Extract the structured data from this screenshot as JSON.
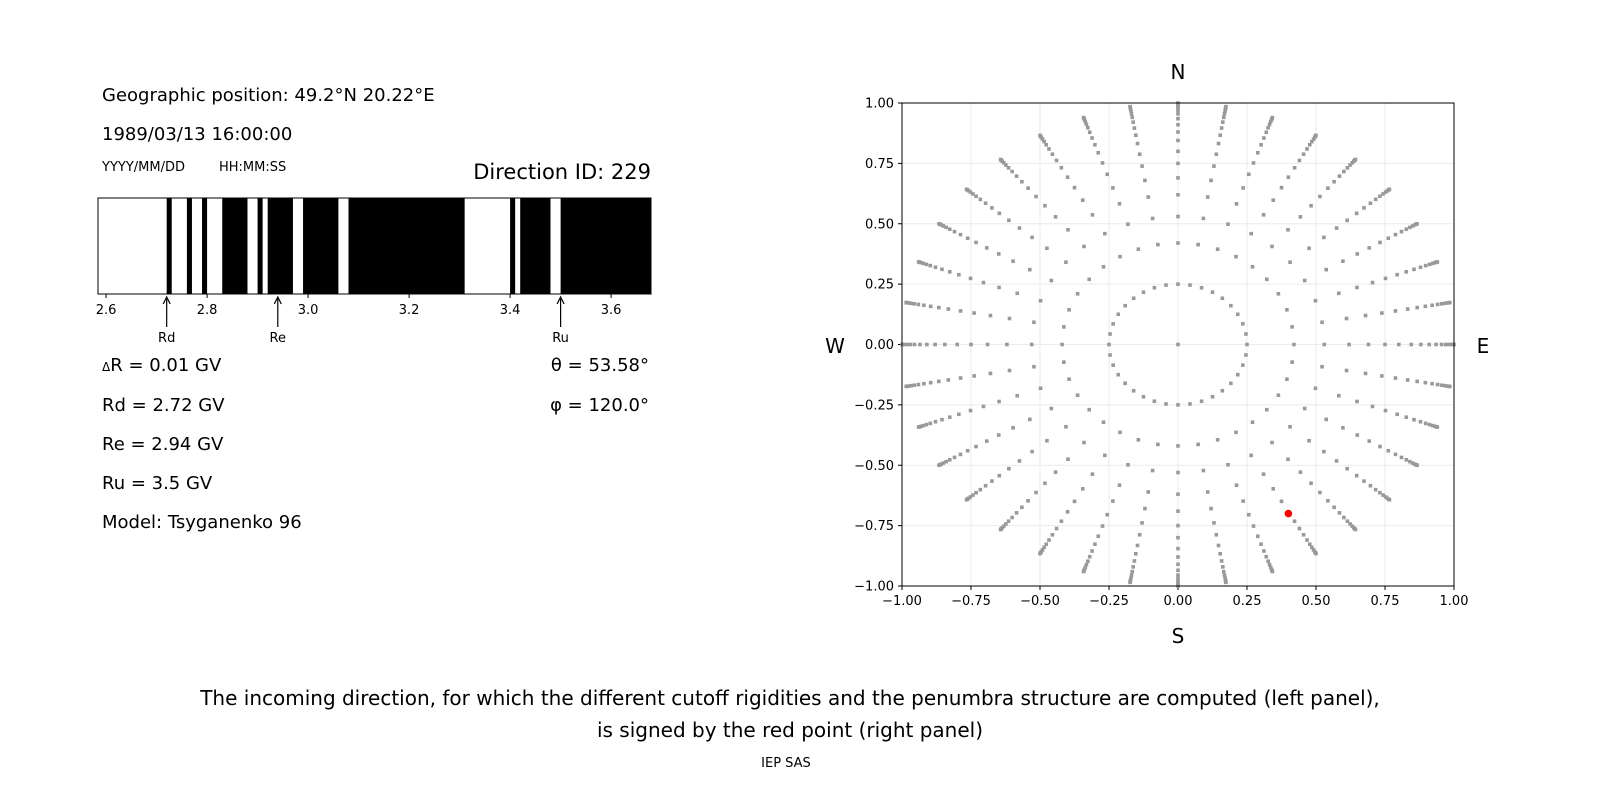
{
  "left_panel": {
    "geo_position": "Geographic position: 49.2°N 20.22°E",
    "datetime": "1989/03/13 16:00:00",
    "date_format": "YYYY/MM/DD",
    "time_format": "HH:MM:SS",
    "direction_id": "Direction ID: 229",
    "delta_r": "R = 0.01 GV",
    "delta_symbol": "Δ",
    "rd": "Rd = 2.72 GV",
    "re": "Re = 2.94 GV",
    "ru": "Ru = 3.5 GV",
    "model": "Model: Tsyganenko 96",
    "theta": "θ = 53.58°",
    "phi": "φ = 120.0°"
  },
  "caption": {
    "line1": "The incoming direction, for which the different cutoff rigidities and the penumbra structure are computed (left panel),",
    "line2": "is signed by the red point (right panel)",
    "credit": "IEP SAS"
  },
  "chart_data": [
    {
      "type": "bar",
      "xlim": [
        2.584,
        3.679
      ],
      "xticks": [
        2.6,
        2.8,
        3.0,
        3.2,
        3.4,
        3.6
      ],
      "xtick_labels": [
        "2.6",
        "2.8",
        "3.0",
        "3.2",
        "3.4",
        "3.6"
      ],
      "forbidden_intervals": [
        [
          2.72,
          2.73
        ],
        [
          2.76,
          2.77
        ],
        [
          2.79,
          2.8
        ],
        [
          2.83,
          2.88
        ],
        [
          2.9,
          2.91
        ],
        [
          2.92,
          2.97
        ],
        [
          2.99,
          3.06
        ],
        [
          3.08,
          3.31
        ],
        [
          3.4,
          3.41
        ],
        [
          3.42,
          3.48
        ],
        [
          3.5,
          3.679
        ]
      ],
      "markers": [
        {
          "label": "Rd",
          "value": 2.72
        },
        {
          "label": "Re",
          "value": 2.94
        },
        {
          "label": "Ru",
          "value": 3.5
        }
      ],
      "colors": {
        "forbidden": "#000000",
        "allowed": "#ffffff"
      }
    },
    {
      "type": "scatter",
      "xlim": [
        -1,
        1
      ],
      "ylim": [
        -1,
        1
      ],
      "grid": true,
      "xticks": [
        "−1.00",
        "−0.75",
        "−0.50",
        "−0.25",
        "0.00",
        "0.25",
        "0.50",
        "0.75",
        "1.00"
      ],
      "yticks": [
        "−1.00",
        "−0.75",
        "−0.50",
        "−0.25",
        "0.00",
        "0.25",
        "0.50",
        "0.75",
        "1.00"
      ],
      "tick_values": [
        -1,
        -0.75,
        -0.5,
        -0.25,
        0,
        0.25,
        0.5,
        0.75,
        1
      ],
      "compass": {
        "north": "N",
        "south": "S",
        "west": "W",
        "east": "E"
      },
      "grid_points": {
        "center": [
          0,
          0
        ],
        "radii": [
          0.25,
          0.42,
          0.53,
          0.62,
          0.69,
          0.75,
          0.8,
          0.845,
          0.88,
          0.91,
          0.935,
          0.955,
          0.97,
          0.982,
          0.991,
          0.997,
          1.0
        ],
        "azimuth_step_deg": 10,
        "color": "#999999"
      },
      "selected_point": {
        "x": 0.4,
        "y": -0.7,
        "color": "#ff0000"
      }
    }
  ]
}
